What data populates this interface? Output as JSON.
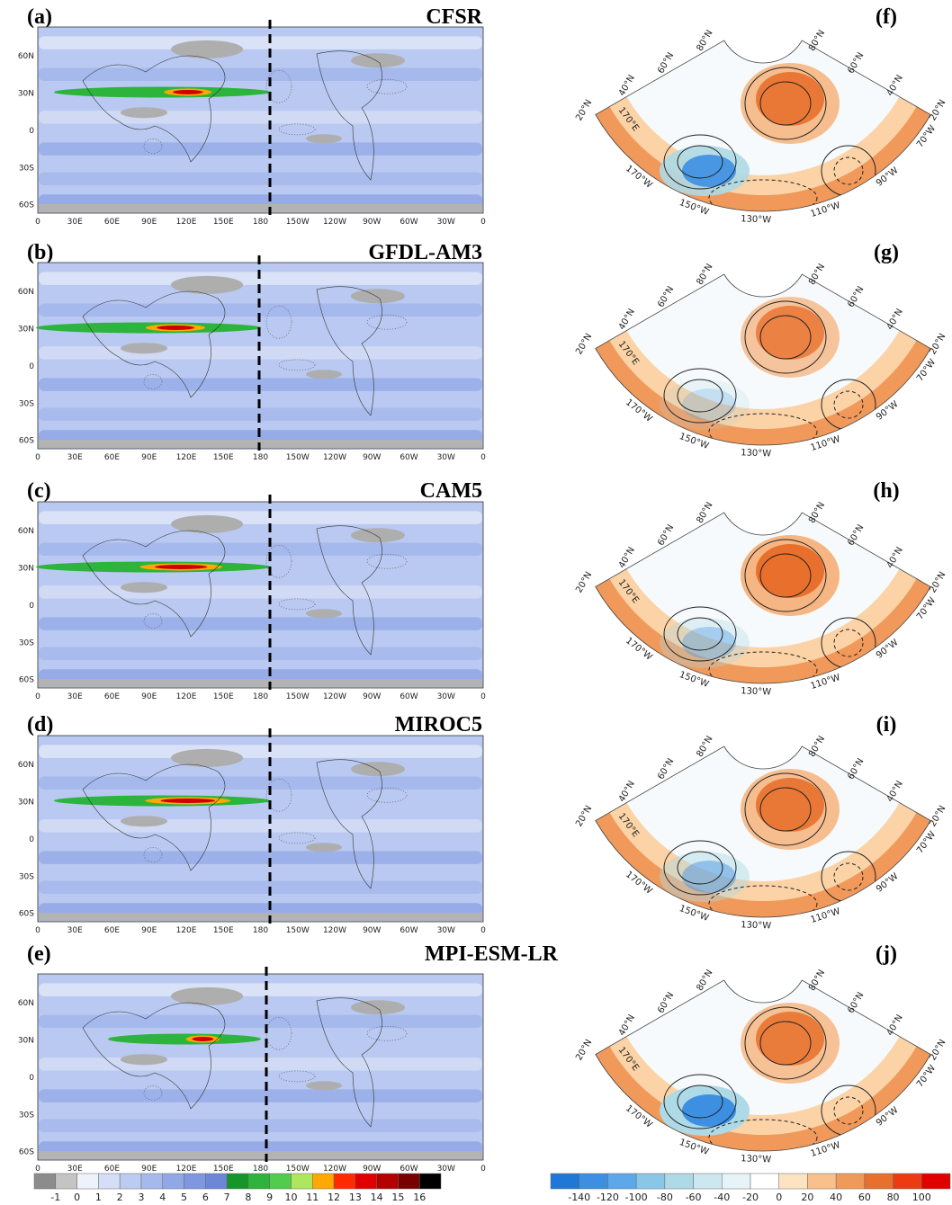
{
  "left_panels": [
    {
      "label": "(a)",
      "title": "CFSR"
    },
    {
      "label": "(b)",
      "title": "GFDL-AM3"
    },
    {
      "label": "(c)",
      "title": "CAM5"
    },
    {
      "label": "(d)",
      "title": "MIROC5"
    },
    {
      "label": "(e)",
      "title": "MPI-ESM-LR"
    }
  ],
  "lat_labels": [
    "60N",
    "30N",
    "0",
    "30S",
    "60S"
  ],
  "lon_labels": [
    "0",
    "30E",
    "60E",
    "90E",
    "120E",
    "150E",
    "180",
    "150W",
    "120W",
    "90W",
    "60W",
    "30W",
    "0"
  ],
  "right_panels": [
    "(f)",
    "(g)",
    "(h)",
    "(i)",
    "(j)"
  ],
  "polar_lat_left": [
    "20°N",
    "40°N",
    "60°N",
    "80°N"
  ],
  "polar_lat_right": [
    "20°N",
    "40°N",
    "60°N",
    "80°N"
  ],
  "polar_lon": [
    "170°E",
    "170°W",
    "150°W",
    "130°W",
    "110°W",
    "90°W",
    "70°W"
  ],
  "left_colorbar": {
    "levels": [
      -1,
      0,
      1,
      2,
      3,
      4,
      5,
      6,
      7,
      8,
      9,
      10,
      11,
      12,
      13,
      14,
      15,
      16
    ],
    "colors": [
      "#8c8c8c",
      "#c4c4c4",
      "#eef2fb",
      "#d4def6",
      "#bccbf1",
      "#a6b9ec",
      "#91a8e7",
      "#7e97e0",
      "#6c86d8",
      "#15952a",
      "#2cb43c",
      "#52cc4c",
      "#aee65c",
      "#ffa800",
      "#ff2a00",
      "#e00000",
      "#b40000",
      "#7a0000",
      "#000000"
    ]
  },
  "right_colorbar": {
    "levels": [
      -140,
      -120,
      -100,
      -80,
      -60,
      -40,
      -20,
      0,
      20,
      40,
      60,
      80,
      100
    ],
    "colors": [
      "#1f78d8",
      "#3d8fe2",
      "#5ca8ea",
      "#8ac6e8",
      "#aed9e6",
      "#cce7ef",
      "#e6f3f7",
      "#ffffff",
      "#fde3c2",
      "#f9c08c",
      "#f09a5a",
      "#e8702c",
      "#ee3a10",
      "#e00000"
    ]
  }
}
